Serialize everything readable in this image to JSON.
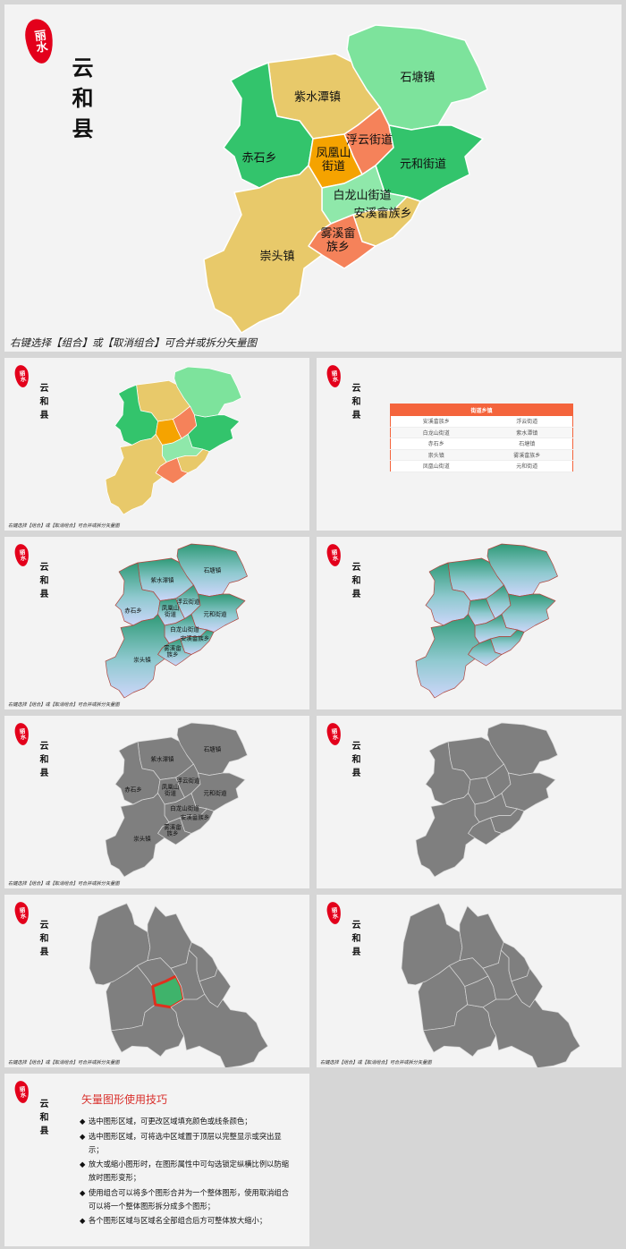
{
  "seal": "丽水",
  "county": "云和县",
  "note": "右键选择【组合】或【取消组合】可合并或拆分矢量图",
  "regions": [
    "紫水潭镇",
    "石塘镇",
    "赤石乡",
    "浮云街道",
    "凤凰山街道",
    "元和街道",
    "白龙山街道",
    "安溪畲族乡",
    "雾溪畲族乡",
    "崇头镇"
  ],
  "table": {
    "header": "街道乡镇",
    "rows": [
      [
        "安溪畲族乡",
        "浮云街道"
      ],
      [
        "白龙山街道",
        "紫水潭镇"
      ],
      [
        "赤石乡",
        "石塘镇"
      ],
      [
        "崇头镇",
        "雾溪畲族乡"
      ],
      [
        "凤凰山街道",
        "元和街道"
      ]
    ]
  },
  "tips": {
    "title": "矢量图形使用技巧",
    "items": [
      "选中图形区域，可更改区域填充颜色或线条颜色；",
      "选中图形区域，可将选中区域置于顶层以完整显示或突出显示；",
      "放大或缩小图形时，在图形属性中可勾选锁定纵横比例以防缩放时图形变形；",
      "使用组合可以将多个图形合并为一个整体图形，使用取消组合可以将一个整体图形拆分成多个图形；",
      "各个图形区域与区域名全部组合后方可整体放大缩小；"
    ]
  }
}
